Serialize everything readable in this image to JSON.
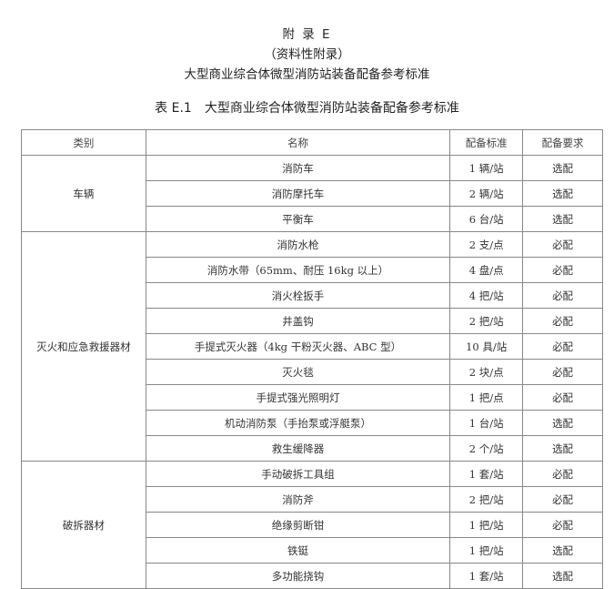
{
  "heading": {
    "appendix": "附 录 E",
    "type": "（资料性附录）",
    "title": "大型商业综合体微型消防站装备配备参考标准"
  },
  "caption": "表 E.1　大型商业综合体微型消防站装备配备参考标准",
  "columns": [
    "类别",
    "名称",
    "配备标准",
    "配备要求"
  ],
  "groups": [
    {
      "category": "车辆",
      "rows": [
        [
          "消防车",
          "1 辆/站",
          "选配"
        ],
        [
          "消防摩托车",
          "2 辆/站",
          "选配"
        ],
        [
          "平衡车",
          "6 台/站",
          "选配"
        ]
      ]
    },
    {
      "category": "灭火和应急救援器材",
      "rows": [
        [
          "消防水枪",
          "2 支/点",
          "必配"
        ],
        [
          "消防水带（65mm、耐压 16kg 以上）",
          "4 盘/点",
          "必配"
        ],
        [
          "消火栓扳手",
          "4 把/站",
          "必配"
        ],
        [
          "井盖钩",
          "2 把/站",
          "必配"
        ],
        [
          "手提式灭火器（4kg 干粉灭火器、ABC 型）",
          "10 具/站",
          "必配"
        ],
        [
          "灭火毯",
          "2 块/点",
          "必配"
        ],
        [
          "手提式强光照明灯",
          "1 把/点",
          "必配"
        ],
        [
          "机动消防泵（手抬泵或浮艇泵）",
          "1 台/站",
          "选配"
        ],
        [
          "救生缓降器",
          "2 个/站",
          "选配"
        ]
      ]
    },
    {
      "category": "破拆器材",
      "rows": [
        [
          "手动破拆工具组",
          "1 套/站",
          "必配"
        ],
        [
          "消防斧",
          "2 把/站",
          "必配"
        ],
        [
          "绝缘剪断钳",
          "1 把/站",
          "必配"
        ],
        [
          "铁铤",
          "1 把/站",
          "选配"
        ],
        [
          "多功能挠钩",
          "1 套/站",
          "选配"
        ]
      ]
    }
  ]
}
